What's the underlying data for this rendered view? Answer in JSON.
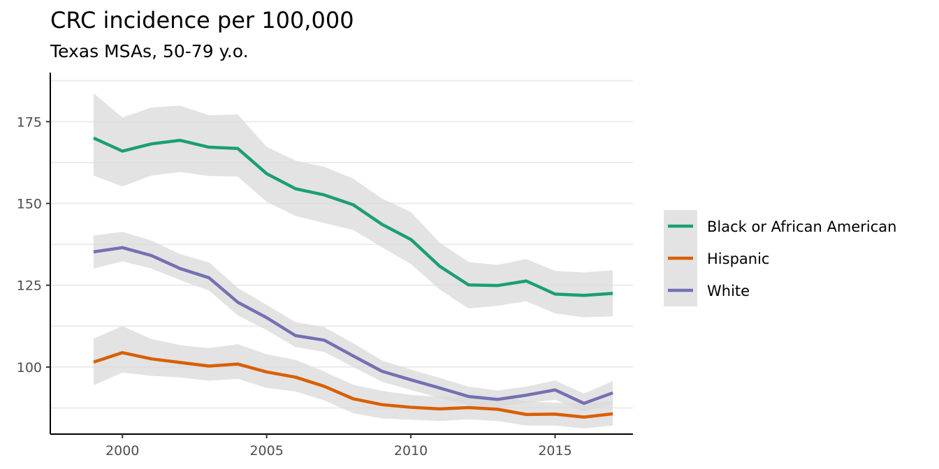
{
  "chart_data": {
    "type": "line",
    "title": "CRC incidence per 100,000",
    "subtitle": "Texas MSAs, 50-79 y.o.",
    "xlabel": "",
    "ylabel": "",
    "x": [
      1999,
      2000,
      2001,
      2002,
      2003,
      2004,
      2005,
      2006,
      2007,
      2008,
      2009,
      2010,
      2011,
      2012,
      2013,
      2014,
      2015,
      2016,
      2017
    ],
    "xlim": [
      1997.5,
      2017.7
    ],
    "ylim": [
      79.5,
      190
    ],
    "x_ticks": [
      2000,
      2005,
      2010,
      2015
    ],
    "y_ticks": [
      100,
      125,
      150,
      175
    ],
    "y_minor_ticks": [
      87.5,
      112.5,
      137.5,
      162.5,
      187.5
    ],
    "grid": "horizontal",
    "confidence_band_color": "#d9d9d9",
    "legend_position": "right",
    "series": [
      {
        "name": "Black or African American",
        "color": "#1b9e77",
        "values": [
          170,
          166,
          168.2,
          169.3,
          167.2,
          166.8,
          159.1,
          154.5,
          152.6,
          149.6,
          143.6,
          139.0,
          130.8,
          125.1,
          124.9,
          126.3,
          122.3,
          121.9,
          122.5
        ],
        "lower": [
          158.5,
          155.2,
          158.5,
          159.6,
          158.4,
          158.2,
          150.5,
          146.2,
          144.0,
          141.9,
          136.6,
          131.5,
          123.7,
          117.9,
          118.7,
          120.1,
          116.4,
          115.2,
          115.5
        ],
        "upper": [
          183.7,
          176.3,
          179.3,
          179.9,
          177.0,
          177.2,
          167.3,
          163.1,
          161.2,
          157.6,
          151.5,
          147.4,
          138.0,
          132.1,
          131.2,
          133.0,
          129.4,
          128.9,
          129.6
        ]
      },
      {
        "name": "Hispanic",
        "color": "#d95f02",
        "values": [
          101.5,
          104.4,
          102.5,
          101.4,
          100.3,
          100.9,
          98.5,
          96.9,
          94.1,
          90.3,
          88.5,
          87.7,
          87.2,
          87.6,
          87.1,
          85.5,
          85.6,
          84.7,
          85.7
        ],
        "lower": [
          94.4,
          98.3,
          97.3,
          96.8,
          95.8,
          96.4,
          93.6,
          92.5,
          89.8,
          85.9,
          84.3,
          83.9,
          83.5,
          84.0,
          83.5,
          82.1,
          82.1,
          81.2,
          82.1
        ],
        "upper": [
          108.7,
          112.5,
          108.6,
          106.7,
          105.8,
          107.0,
          103.9,
          102.2,
          98.6,
          94.6,
          92.7,
          91.5,
          90.9,
          91.4,
          91.0,
          89.5,
          89.1,
          88.8,
          89.6
        ]
      },
      {
        "name": "White",
        "color": "#7570b3",
        "values": [
          135.2,
          136.5,
          134.1,
          130.1,
          127.3,
          119.8,
          115.1,
          109.6,
          108.2,
          103.4,
          98.7,
          96.1,
          93.6,
          91.0,
          90.1,
          91.4,
          93.0,
          88.9,
          92.1
        ],
        "lower": [
          130.1,
          132.3,
          130.1,
          126.6,
          123.4,
          115.8,
          111.3,
          106.1,
          104.6,
          100.0,
          95.5,
          93.0,
          90.6,
          88.3,
          87.7,
          89.0,
          90.0,
          86.5,
          88.6
        ],
        "upper": [
          140.2,
          141.3,
          138.7,
          134.5,
          132.0,
          124.2,
          119.0,
          113.7,
          112.2,
          107.3,
          102.0,
          99.2,
          96.7,
          94.0,
          92.8,
          94.0,
          95.9,
          91.9,
          95.7
        ]
      }
    ]
  }
}
